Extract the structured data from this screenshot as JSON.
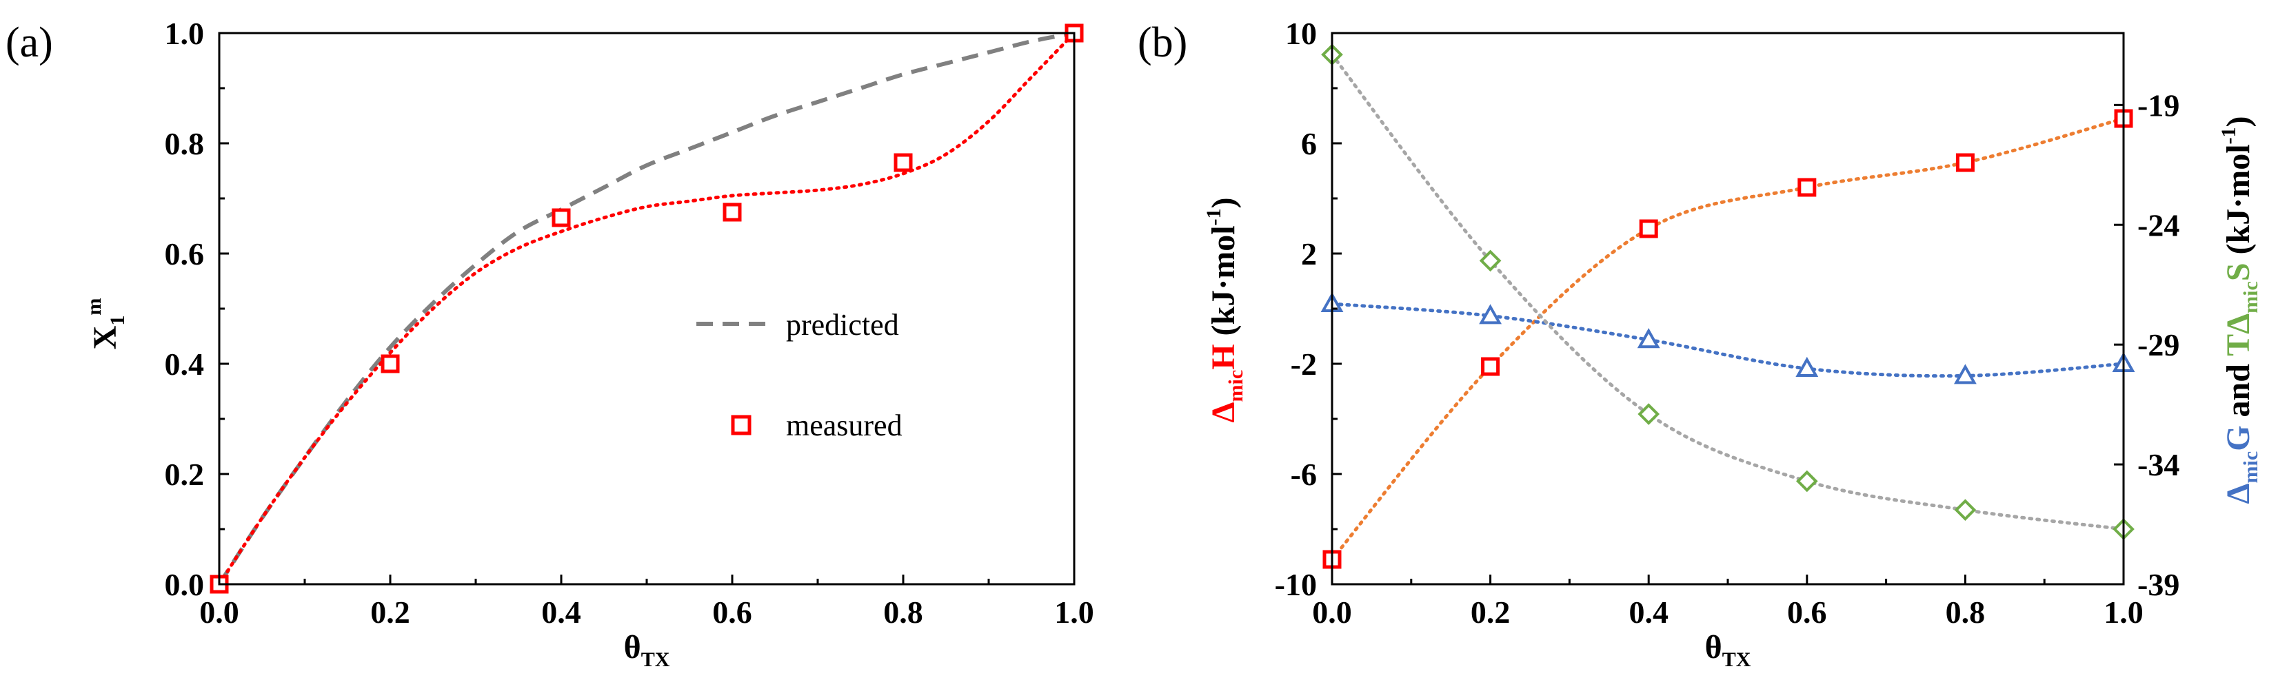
{
  "colors": {
    "red": "#ff0000",
    "orange": "#ed7d31",
    "blue": "#4472c4",
    "green": "#70ad47",
    "gray": "#808080",
    "black": "#000000"
  },
  "chart_data": [
    {
      "type": "scatter",
      "panel_label": "(a)",
      "title": "",
      "xlabel": {
        "main": "θ",
        "sub": "TX"
      },
      "ylabel": {
        "main": "X",
        "sub": "1",
        "sup": "m"
      },
      "xlim": [
        0,
        1
      ],
      "ylim": [
        0,
        1
      ],
      "x_ticks": [
        0,
        0.2,
        0.4,
        0.6,
        0.8,
        1.0
      ],
      "y_ticks": [
        0,
        0.2,
        0.4,
        0.6,
        0.8,
        1.0
      ],
      "x_tick_labels": [
        "0.0",
        "0.2",
        "0.4",
        "0.6",
        "0.8",
        "1.0"
      ],
      "y_tick_labels": [
        "0.0",
        "0.2",
        "0.4",
        "0.6",
        "0.8",
        "1.0"
      ],
      "legend": {
        "position": "center-right",
        "entries": [
          "predicted",
          "measured"
        ]
      },
      "series": [
        {
          "name": "predicted",
          "style": "dashed-line",
          "color": "#808080",
          "x": [
            0,
            0.05,
            0.1,
            0.15,
            0.2,
            0.25,
            0.3,
            0.35,
            0.4,
            0.45,
            0.5,
            0.55,
            0.6,
            0.65,
            0.7,
            0.75,
            0.8,
            0.85,
            0.9,
            0.95,
            1.0
          ],
          "y": [
            0,
            0.12,
            0.23,
            0.335,
            0.43,
            0.51,
            0.58,
            0.64,
            0.68,
            0.72,
            0.76,
            0.79,
            0.82,
            0.85,
            0.875,
            0.9,
            0.925,
            0.945,
            0.965,
            0.985,
            1.0
          ]
        },
        {
          "name": "measured",
          "style": "square-marker",
          "color": "#ff0000",
          "x": [
            0,
            0.2,
            0.4,
            0.6,
            0.8,
            1.0
          ],
          "y": [
            0.0,
            0.4,
            0.665,
            0.675,
            0.765,
            1.0
          ]
        },
        {
          "name": "measured fit",
          "style": "dotted-line",
          "color": "#ff0000",
          "x": [
            0,
            0.05,
            0.1,
            0.15,
            0.2,
            0.25,
            0.3,
            0.35,
            0.4,
            0.45,
            0.5,
            0.55,
            0.6,
            0.65,
            0.7,
            0.75,
            0.8,
            0.85,
            0.9,
            0.95,
            1.0
          ],
          "y": [
            0,
            0.12,
            0.23,
            0.33,
            0.42,
            0.5,
            0.565,
            0.61,
            0.64,
            0.665,
            0.685,
            0.695,
            0.705,
            0.71,
            0.715,
            0.725,
            0.745,
            0.78,
            0.84,
            0.92,
            1.0
          ]
        }
      ]
    },
    {
      "type": "scatter",
      "panel_label": "(b)",
      "title": "",
      "xlabel": {
        "main": "θ",
        "sub": "TX"
      },
      "ylabel_left": {
        "delta": "Δ",
        "sub": "mic",
        "main": "H",
        "unit": " (kJ·mol",
        "unit_sup": "-1",
        "unit_end": ")"
      },
      "ylabel_right": {
        "delta": "Δ",
        "sub": "mic",
        "g": "G",
        "and": " and ",
        "t": "TΔ",
        "sub2": "mic",
        "s": "S",
        "unit": " (kJ·mol",
        "unit_sup": "-1",
        "unit_end": ")"
      },
      "xlim": [
        0,
        1
      ],
      "ylim_left": [
        -10,
        10
      ],
      "ylim_right": [
        -39,
        -16
      ],
      "x_ticks": [
        0,
        0.2,
        0.4,
        0.6,
        0.8,
        1.0
      ],
      "x_tick_labels": [
        "0.0",
        "0.2",
        "0.4",
        "0.6",
        "0.8",
        "1.0"
      ],
      "y_ticks_left": [
        -10,
        -6,
        -2,
        2,
        6,
        10
      ],
      "y_tick_labels_left": [
        "-10",
        "-6",
        "-2",
        "2",
        "6",
        "10"
      ],
      "y_ticks_right": [
        -39,
        -34,
        -29,
        -24,
        -19
      ],
      "y_tick_labels_right": [
        "-39",
        "-34",
        "-29",
        "-24",
        "-19"
      ],
      "series": [
        {
          "name": "ΔmicH",
          "axis": "left",
          "marker": "square",
          "color": "#ff0000",
          "line_color": "#ed7d31",
          "x": [
            0,
            0.2,
            0.4,
            0.6,
            0.8,
            1.0
          ],
          "y": [
            -9.1,
            -2.1,
            2.9,
            4.4,
            5.3,
            6.9
          ]
        },
        {
          "name": "ΔmicG",
          "axis": "right",
          "marker": "triangle",
          "color": "#4472c4",
          "line_color": "#4472c4",
          "x": [
            0,
            0.2,
            0.4,
            0.6,
            0.8,
            1.0
          ],
          "y": [
            -27.3,
            -27.8,
            -28.8,
            -30.0,
            -30.3,
            -29.8
          ]
        },
        {
          "name": "TΔmicS",
          "axis": "right",
          "marker": "diamond",
          "color": "#70ad47",
          "line_color": "#a6a6a6",
          "x": [
            0,
            0.2,
            0.4,
            0.6,
            0.8,
            1.0
          ],
          "y": [
            -16.9,
            -25.5,
            -31.9,
            -34.7,
            -35.9,
            -36.7
          ]
        }
      ]
    }
  ]
}
